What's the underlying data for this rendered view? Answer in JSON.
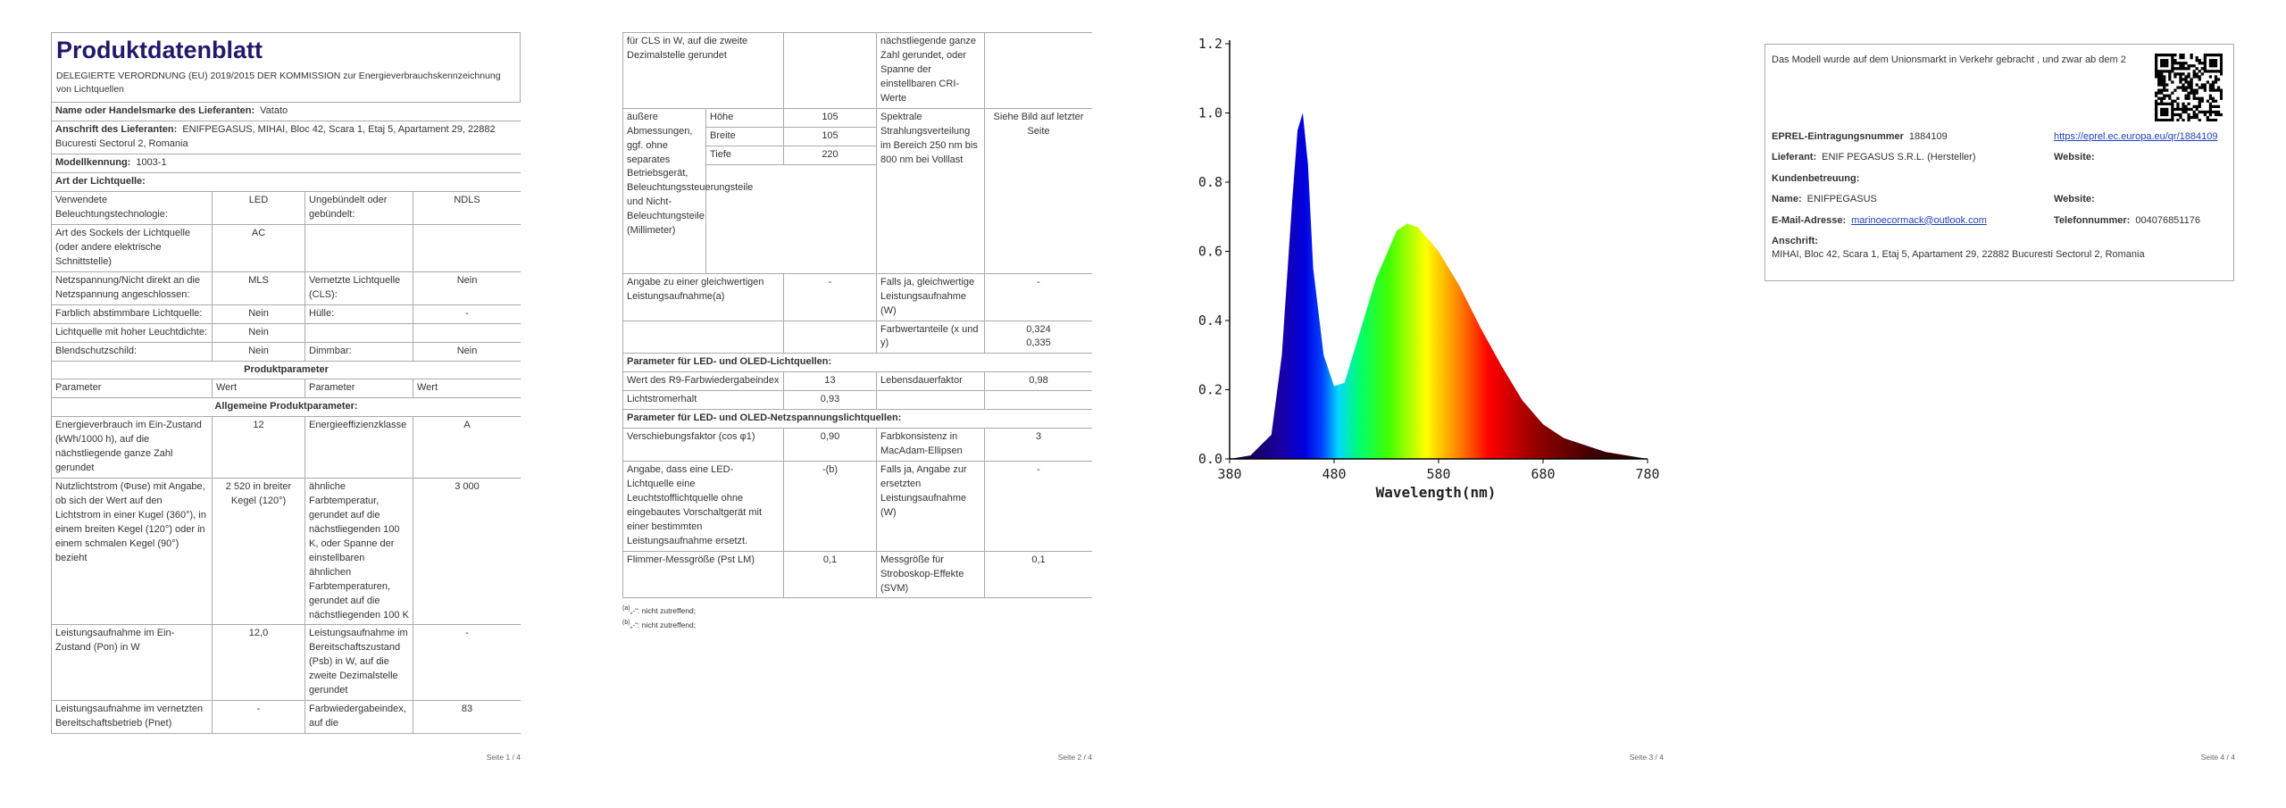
{
  "pages": [
    {
      "title": "Produktdatenblatt",
      "subtitle": "DELEGIERTE VERORDNUNG (EU) 2019/2015 DER KOMMISSION zur Energieverbrauchskennzeichnung von Lichtquellen",
      "blocks": [
        {
          "label": "Name oder Handelsmarke des Lieferanten:",
          "value": "Vatato"
        },
        {
          "label": "Anschrift des Lieferanten:",
          "value": "ENIFPEGASUS, MIHAI, Bloc 42, Scara 1, Etaj 5, Apartament 29, 22882 Bucuresti Sectorul 2, Romania"
        },
        {
          "label": "Modellkennung:",
          "value": "1003-1"
        },
        {
          "heading": "Art der Lichtquelle:"
        },
        {
          "cells": [
            "Verwendete Beleuchtungstechnologie:",
            "LED",
            "Ungebündelt oder gebündelt:",
            "NDLS"
          ]
        },
        {
          "cells": [
            "Art des Sockels der Lichtquelle (oder andere elektrische Schnittstelle)",
            "AC",
            null,
            null
          ]
        },
        {
          "cells": [
            "Netzspannung/Nicht direkt an die Netzspannung angeschlossen:",
            "MLS",
            "Vernetzte Lichtquelle (CLS):",
            "Nein"
          ]
        },
        {
          "cells": [
            "Farblich abstimmbare Lichtquelle:",
            "Nein",
            "Hülle:",
            "-"
          ]
        },
        {
          "cells": [
            "Lichtquelle mit hoher Leuchtdichte:",
            "Nein",
            null,
            null
          ]
        },
        {
          "cells": [
            "Blendschutzschild:",
            "Nein",
            "Dimmbar:",
            "Nein"
          ]
        },
        {
          "center_heading": "Produktparameter"
        },
        {
          "cells": [
            "Parameter",
            "Wert",
            "Parameter",
            "Wert"
          ],
          "plain": true
        },
        {
          "center_heading": "Allgemeine Produktparameter:"
        },
        {
          "cells": [
            "Energieverbrauch im Ein-Zustand (kWh/1000 h), auf die nächstliegende ganze Zahl gerundet",
            "12",
            "Energieeffizienzklasse",
            "A"
          ]
        },
        {
          "cells": [
            "Nutzlichtstrom (Φuse) mit Angabe, ob sich der Wert auf den Lichtstrom in einer Kugel (360°), in einem breiten Kegel (120°) oder in einem schmalen Kegel (90°) bezieht",
            "2 520 in breiter Kegel (120°)",
            "ähnliche Farbtemperatur, gerundet auf die nächstliegenden 100 K, oder Spanne der einstellbaren ähnlichen Farbtemperaturen, gerundet auf die nächstliegenden 100 K",
            "3 000"
          ]
        },
        {
          "cells": [
            "Leistungsaufnahme im Ein-Zustand (Pon) in W",
            "12,0",
            "Leistungsaufnahme im Bereitschaftszustand (Psb) in W, auf die zweite Dezimalstelle gerundet",
            "-"
          ]
        },
        {
          "cells": [
            "Leistungsaufnahme im vernetzten Bereitschaftsbetrieb (Pnet)",
            "-",
            "Farbwiedergabeindex, auf die",
            "83"
          ]
        }
      ],
      "footer": "Seite 1 / 4"
    },
    {
      "blocks": [
        {
          "cells": [
            "für CLS in W, auf die zweite Dezimalstelle gerundet",
            null,
            "nächstliegende ganze Zahl gerundet, oder Spanne der einstellbaren CRI-Werte",
            null
          ]
        },
        {
          "label": "äußere Abmessungen, ggf. ohne separates Betriebsgerät, Beleuchtungssteuerungsteile und Nicht-Beleuchtungsteile (Millimeter)",
          "dimensions": [
            {
              "label": "Höhe",
              "value": "105"
            },
            {
              "label": "Breite",
              "value": "105"
            },
            {
              "label": "Tiefe",
              "value": "220"
            }
          ],
          "cells": [
            "Spektrale Strahlungsverteilung im Bereich 250 nm bis 800 nm bei Volllast",
            "Siehe Bild auf letzter Seite"
          ]
        },
        {
          "cells": [
            "Angabe zu einer gleichwertigen Leistungsaufnahme(a)",
            "-",
            "Falls ja, gleichwertige Leistungsaufnahme (W)",
            "-"
          ]
        },
        {
          "cells": [
            null,
            null,
            "Farbwertanteile (x und y)",
            "0,324\n0,335"
          ]
        },
        {
          "heading": "Parameter für LED- und OLED-Lichtquellen:"
        },
        {
          "cells": [
            "Wert des R9-Farbwiedergabeindex",
            "13",
            "Lebensdauerfaktor",
            "0,98"
          ]
        },
        {
          "cells": [
            "Lichtstromerhalt",
            "0,93",
            null,
            null
          ]
        },
        {
          "heading": "Parameter für LED- und OLED-Netzspannungslichtquellen:"
        },
        {
          "cells": [
            "Verschiebungsfaktor (cos φ1)",
            "0,90",
            "Farbkonsistenz in MacAdam-Ellipsen",
            "3"
          ]
        },
        {
          "cells": [
            "Angabe, dass eine LED-Lichtquelle eine Leuchtstofflichtquelle ohne eingebautes Vorschaltgerät mit einer bestimmten Leistungsaufnahme ersetzt.",
            "-(b)",
            "Falls ja, Angabe zur ersetzten Leistungsaufnahme (W)",
            "-"
          ]
        },
        {
          "cells": [
            "Flimmer-Messgröße (Pst LM)",
            "0,1",
            "Messgröße für Stroboskop-Effekte (SVM)",
            "0,1"
          ]
        }
      ],
      "footnotes": [
        {
          "mark": "(a)",
          "text": "„-“: nicht zutreffend;"
        },
        {
          "mark": "(b)",
          "text": "„-“: nicht zutreffend;"
        }
      ],
      "footer": "Seite 2 / 4"
    },
    {
      "footer": "Seite 3 / 4"
    },
    {
      "intro": "Das Modell wurde auf dem Unionsmarkt in Verkehr gebracht , und zwar ab dem 2",
      "rows": [
        [
          {
            "label": "EPREL-Eintragungsnummer",
            "value": "1884109"
          },
          {
            "link": "https://eprel.ec.europa.eu/qr/1884109"
          }
        ],
        [
          {
            "label": "Lieferant:",
            "value": "ENIF PEGASUS S.R.L. (Hersteller)"
          },
          {
            "label": "Website:"
          }
        ],
        [
          {
            "label": "Kundenbetreuung:"
          }
        ],
        [
          {
            "label": "Name:",
            "value": "ENIFPEGASUS"
          },
          {
            "label": "Website:"
          }
        ],
        [
          {
            "label": "E-Mail-Adresse:",
            "link": "marinoecormack@outlook.com"
          },
          {
            "label": "Telefonnummer:",
            "value": "004076851176"
          }
        ],
        [
          {
            "label": "Anschrift:",
            "address": "MIHAI, Bloc 42, Scara 1, Etaj 5, Apartament 29, 22882 Bucuresti Sectorul 2, Romania"
          }
        ]
      ],
      "footer": "Seite 4 / 4"
    }
  ],
  "chart_data": {
    "type": "area",
    "x_label": "Wavelength(nm)",
    "x": [
      380,
      400,
      420,
      430,
      440,
      445,
      450,
      455,
      460,
      470,
      480,
      490,
      500,
      520,
      540,
      550,
      560,
      580,
      600,
      620,
      640,
      660,
      680,
      700,
      720,
      740,
      760,
      780
    ],
    "values": [
      0,
      0.01,
      0.07,
      0.3,
      0.75,
      0.95,
      1.0,
      0.85,
      0.55,
      0.3,
      0.21,
      0.22,
      0.32,
      0.52,
      0.66,
      0.68,
      0.67,
      0.6,
      0.5,
      0.38,
      0.27,
      0.17,
      0.1,
      0.06,
      0.04,
      0.02,
      0.01,
      0
    ],
    "xlim": [
      380,
      780
    ],
    "ylim": [
      0,
      1.2
    ],
    "xticks": [
      380,
      480,
      580,
      680,
      780
    ],
    "yticks": [
      {
        "value": 0,
        "label": "0.0"
      },
      0.2,
      0.4,
      0.6,
      0.8,
      {
        "value": 1,
        "label": "1.0"
      },
      1.2
    ]
  }
}
